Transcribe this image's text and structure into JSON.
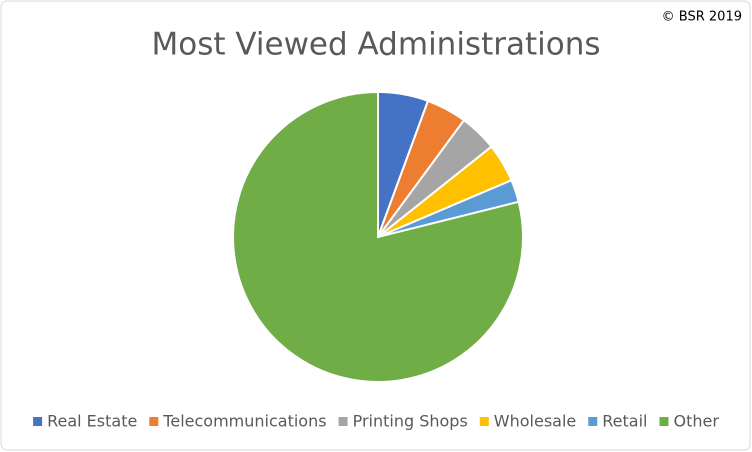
{
  "chart_data": {
    "type": "pie",
    "title": "Most Viewed Administrations",
    "annotation": "© BSR 2019",
    "categories": [
      "Real Estate",
      "Telecommunications",
      "Printing Shops",
      "Wholesale",
      "Retail",
      "Other"
    ],
    "values": [
      5.6,
      4.5,
      4.2,
      4.3,
      2.5,
      78.9
    ],
    "colors": [
      "#4472c4",
      "#ed7d31",
      "#a5a5a5",
      "#ffc000",
      "#5b9bd5",
      "#70ad47"
    ],
    "legend": "bottom"
  }
}
